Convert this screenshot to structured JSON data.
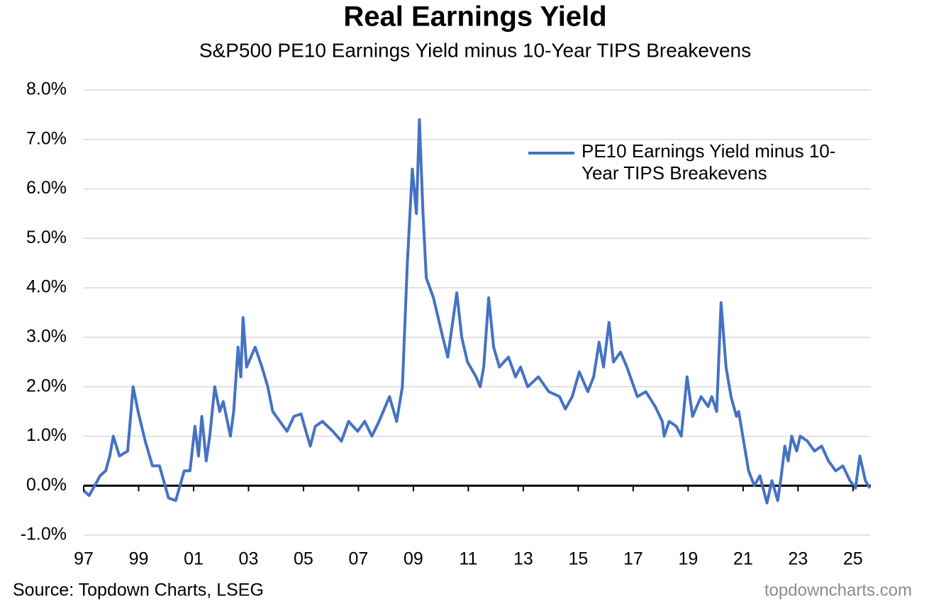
{
  "chart_data": {
    "type": "line",
    "title": "Real Earnings Yield",
    "subtitle": "S&P500 PE10 Earnings Yield minus 10-Year TIPS Breakevens",
    "source": "Source: Topdown Charts, LSEG",
    "watermark": "topdowncharts.com",
    "legend": "upper right",
    "grid": true,
    "xlim": [
      1997,
      2025.65
    ],
    "ylim": [
      -1,
      8
    ],
    "yticks": [
      {
        "value": -1,
        "label": "-1.0%"
      },
      {
        "value": 0,
        "label": "0.0%"
      },
      {
        "value": 1,
        "label": "1.0%"
      },
      {
        "value": 2,
        "label": "2.0%"
      },
      {
        "value": 3,
        "label": "3.0%"
      },
      {
        "value": 4,
        "label": "4.0%"
      },
      {
        "value": 5,
        "label": "5.0%"
      },
      {
        "value": 6,
        "label": "6.0%"
      },
      {
        "value": 7,
        "label": "7.0%"
      },
      {
        "value": 8,
        "label": "8.0%"
      }
    ],
    "xticks": [
      {
        "value": 1997,
        "label": "97"
      },
      {
        "value": 1999,
        "label": "99"
      },
      {
        "value": 2001,
        "label": "01"
      },
      {
        "value": 2003,
        "label": "03"
      },
      {
        "value": 2005,
        "label": "05"
      },
      {
        "value": 2007,
        "label": "07"
      },
      {
        "value": 2009,
        "label": "09"
      },
      {
        "value": 2011,
        "label": "11"
      },
      {
        "value": 2013,
        "label": "13"
      },
      {
        "value": 2015,
        "label": "15"
      },
      {
        "value": 2017,
        "label": "17"
      },
      {
        "value": 2019,
        "label": "19"
      },
      {
        "value": 2021,
        "label": "21"
      },
      {
        "value": 2023,
        "label": "23"
      },
      {
        "value": 2025,
        "label": "25"
      }
    ],
    "x": [
      1997.0,
      1997.2,
      1997.4,
      1997.6,
      1997.8,
      1997.95,
      1998.08,
      1998.3,
      1998.6,
      1998.8,
      1998.98,
      1999.24,
      1999.5,
      1999.76,
      2000.09,
      2000.35,
      2000.66,
      2000.87,
      2001.05,
      2001.18,
      2001.3,
      2001.46,
      2001.59,
      2001.77,
      2001.95,
      2002.08,
      2002.34,
      2002.46,
      2002.62,
      2002.72,
      2002.8,
      2002.93,
      2003.24,
      2003.49,
      2003.7,
      2003.88,
      2004.14,
      2004.4,
      2004.65,
      2004.91,
      2005.09,
      2005.25,
      2005.43,
      2005.69,
      2006.07,
      2006.38,
      2006.64,
      2006.97,
      2007.23,
      2007.49,
      2007.75,
      2008.13,
      2008.39,
      2008.6,
      2008.78,
      2008.96,
      2009.11,
      2009.22,
      2009.35,
      2009.47,
      2009.73,
      2010.07,
      2010.25,
      2010.58,
      2010.76,
      2010.97,
      2011.28,
      2011.43,
      2011.56,
      2011.74,
      2011.92,
      2012.13,
      2012.46,
      2012.72,
      2012.9,
      2013.16,
      2013.55,
      2013.93,
      2014.32,
      2014.53,
      2014.78,
      2015.04,
      2015.35,
      2015.56,
      2015.76,
      2015.92,
      2016.12,
      2016.28,
      2016.54,
      2016.77,
      2017.15,
      2017.46,
      2017.8,
      2018.06,
      2018.13,
      2018.31,
      2018.57,
      2018.75,
      2018.96,
      2019.16,
      2019.47,
      2019.73,
      2019.86,
      2020.04,
      2020.2,
      2020.38,
      2020.56,
      2020.76,
      2020.84,
      2021.02,
      2021.2,
      2021.41,
      2021.61,
      2021.87,
      2022.05,
      2022.26,
      2022.39,
      2022.52,
      2022.64,
      2022.77,
      2022.95,
      2023.08,
      2023.34,
      2023.6,
      2023.86,
      2024.11,
      2024.37,
      2024.63,
      2024.89,
      2025.09,
      2025.25,
      2025.45,
      2025.61
    ],
    "series": [
      {
        "name": "PE10 Earnings Yield minus 10-Year TIPS Breakevens",
        "color": "#4472c4",
        "values": [
          -0.1,
          -0.2,
          0.0,
          0.2,
          0.3,
          0.6,
          1.0,
          0.6,
          0.7,
          2.0,
          1.5,
          0.9,
          0.4,
          0.4,
          -0.25,
          -0.3,
          0.3,
          0.3,
          1.2,
          0.6,
          1.4,
          0.5,
          1.0,
          2.0,
          1.5,
          1.7,
          1.0,
          1.5,
          2.8,
          2.2,
          3.4,
          2.4,
          2.8,
          2.4,
          2.0,
          1.5,
          1.3,
          1.1,
          1.4,
          1.45,
          1.1,
          0.8,
          1.2,
          1.3,
          1.1,
          0.9,
          1.3,
          1.1,
          1.3,
          1.0,
          1.3,
          1.8,
          1.3,
          2.0,
          4.5,
          6.4,
          5.5,
          7.4,
          5.5,
          4.2,
          3.8,
          3.0,
          2.6,
          3.9,
          3.0,
          2.5,
          2.2,
          2.0,
          2.4,
          3.8,
          2.8,
          2.4,
          2.6,
          2.2,
          2.4,
          2.0,
          2.2,
          1.9,
          1.8,
          1.55,
          1.8,
          2.3,
          1.9,
          2.2,
          2.9,
          2.4,
          3.3,
          2.5,
          2.7,
          2.4,
          1.8,
          1.9,
          1.6,
          1.3,
          1.0,
          1.3,
          1.2,
          1.0,
          2.2,
          1.4,
          1.8,
          1.6,
          1.8,
          1.5,
          3.7,
          2.4,
          1.8,
          1.4,
          1.5,
          0.9,
          0.3,
          0.0,
          0.2,
          -0.35,
          0.1,
          -0.3,
          0.2,
          0.8,
          0.5,
          1.0,
          0.7,
          1.0,
          0.9,
          0.7,
          0.8,
          0.5,
          0.3,
          0.4,
          0.1,
          -0.05,
          0.6,
          0.1,
          -0.05
        ]
      }
    ]
  }
}
